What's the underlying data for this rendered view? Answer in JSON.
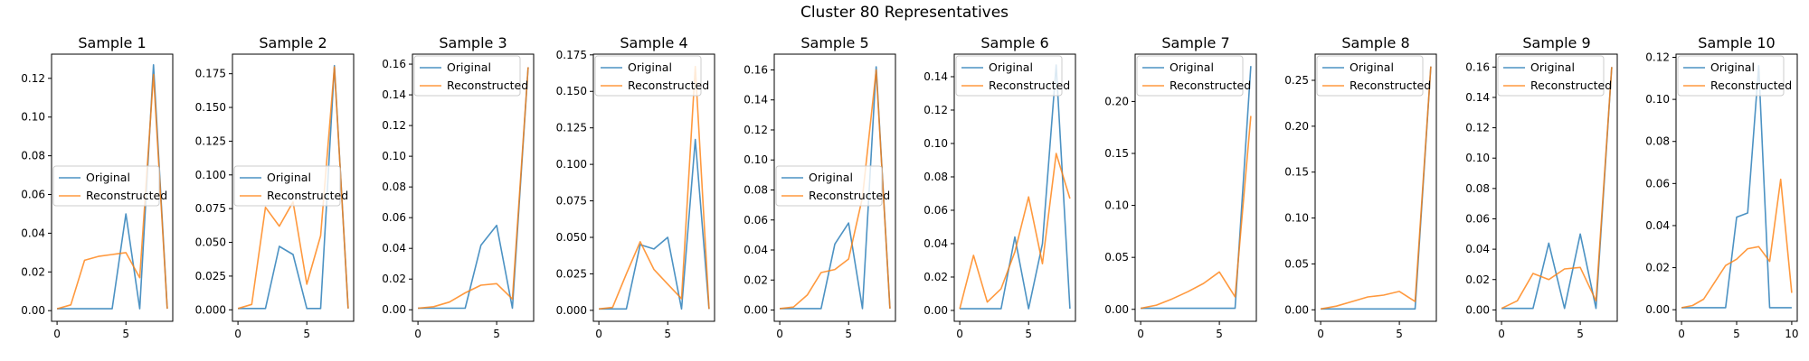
{
  "figure": {
    "suptitle": "Cluster 80 Representatives"
  },
  "colors": {
    "original": "#1f77b4",
    "reconstructed": "#ff7f0e"
  },
  "chart_data": [
    {
      "type": "line",
      "title": "Sample 1",
      "xlim": [
        -0.4,
        8.4
      ],
      "ylim": [
        -0.0055,
        0.1325
      ],
      "xticks": [
        0,
        5
      ],
      "yticks": [
        0.0,
        0.02,
        0.04,
        0.06,
        0.08,
        0.1,
        0.12
      ],
      "ytick_labels": [
        "0.00",
        "0.02",
        "0.04",
        "0.06",
        "0.08",
        "0.10",
        "0.12"
      ],
      "legend_loc": "center-left",
      "series": [
        {
          "name": "Original",
          "x": [
            0,
            1,
            2,
            3,
            4,
            5,
            6,
            7,
            8
          ],
          "y": [
            0.001,
            0.001,
            0.001,
            0.001,
            0.001,
            0.05,
            0.001,
            0.127,
            0.001
          ]
        },
        {
          "name": "Reconstructed",
          "x": [
            0,
            1,
            2,
            3,
            4,
            5,
            6,
            7,
            8
          ],
          "y": [
            0.001,
            0.003,
            0.026,
            0.028,
            0.029,
            0.03,
            0.017,
            0.122,
            0.001
          ]
        }
      ]
    },
    {
      "type": "line",
      "title": "Sample 2",
      "xlim": [
        -0.4,
        8.4
      ],
      "ylim": [
        -0.0085,
        0.1895
      ],
      "xticks": [
        0,
        5
      ],
      "yticks": [
        0.0,
        0.025,
        0.05,
        0.075,
        0.1,
        0.125,
        0.15,
        0.175
      ],
      "ytick_labels": [
        "0.000",
        "0.025",
        "0.050",
        "0.075",
        "0.100",
        "0.125",
        "0.150",
        "0.175"
      ],
      "legend_loc": "center-left",
      "series": [
        {
          "name": "Original",
          "x": [
            0,
            1,
            2,
            3,
            4,
            5,
            6,
            7,
            8
          ],
          "y": [
            0.001,
            0.001,
            0.001,
            0.047,
            0.041,
            0.001,
            0.001,
            0.181,
            0.001
          ]
        },
        {
          "name": "Reconstructed",
          "x": [
            0,
            1,
            2,
            3,
            4,
            5,
            6,
            7,
            8
          ],
          "y": [
            0.001,
            0.004,
            0.076,
            0.062,
            0.08,
            0.019,
            0.055,
            0.18,
            0.001
          ]
        }
      ]
    },
    {
      "type": "line",
      "title": "Sample 3",
      "xlim": [
        -0.35,
        7.35
      ],
      "ylim": [
        -0.0075,
        0.1665
      ],
      "xticks": [
        0,
        5
      ],
      "yticks": [
        0.0,
        0.02,
        0.04,
        0.06,
        0.08,
        0.1,
        0.12,
        0.14,
        0.16
      ],
      "ytick_labels": [
        "0.00",
        "0.02",
        "0.04",
        "0.06",
        "0.08",
        "0.10",
        "0.12",
        "0.14",
        "0.16"
      ],
      "legend_loc": "upper-left",
      "series": [
        {
          "name": "Original",
          "x": [
            0,
            1,
            2,
            3,
            4,
            5,
            6,
            7
          ],
          "y": [
            0.001,
            0.001,
            0.001,
            0.001,
            0.042,
            0.055,
            0.001,
            0.158
          ]
        },
        {
          "name": "Reconstructed",
          "x": [
            0,
            1,
            2,
            3,
            4,
            5,
            6,
            7
          ],
          "y": [
            0.001,
            0.002,
            0.005,
            0.011,
            0.016,
            0.017,
            0.007,
            0.158
          ]
        }
      ]
    },
    {
      "type": "line",
      "title": "Sample 4",
      "xlim": [
        -0.4,
        8.4
      ],
      "ylim": [
        -0.0075,
        0.1755
      ],
      "xticks": [
        0,
        5
      ],
      "yticks": [
        0.0,
        0.025,
        0.05,
        0.075,
        0.1,
        0.125,
        0.15,
        0.175
      ],
      "ytick_labels": [
        "0.000",
        "0.025",
        "0.050",
        "0.075",
        "0.100",
        "0.125",
        "0.150",
        "0.175"
      ],
      "legend_loc": "upper-left",
      "series": [
        {
          "name": "Original",
          "x": [
            0,
            1,
            2,
            3,
            4,
            5,
            6,
            7,
            8
          ],
          "y": [
            0.001,
            0.001,
            0.001,
            0.045,
            0.042,
            0.05,
            0.001,
            0.117,
            0.001
          ]
        },
        {
          "name": "Reconstructed",
          "x": [
            0,
            1,
            2,
            3,
            4,
            5,
            6,
            7,
            8
          ],
          "y": [
            0.001,
            0.002,
            0.025,
            0.047,
            0.028,
            0.018,
            0.008,
            0.167,
            0.001
          ]
        }
      ]
    },
    {
      "type": "line",
      "title": "Sample 5",
      "xlim": [
        -0.4,
        8.4
      ],
      "ylim": [
        -0.0075,
        0.1705
      ],
      "xticks": [
        0,
        5
      ],
      "yticks": [
        0.0,
        0.02,
        0.04,
        0.06,
        0.08,
        0.1,
        0.12,
        0.14,
        0.16
      ],
      "ytick_labels": [
        "0.00",
        "0.02",
        "0.04",
        "0.06",
        "0.08",
        "0.10",
        "0.12",
        "0.14",
        "0.16"
      ],
      "legend_loc": "center-left",
      "series": [
        {
          "name": "Original",
          "x": [
            0,
            1,
            2,
            3,
            4,
            5,
            6,
            7,
            8
          ],
          "y": [
            0.001,
            0.001,
            0.001,
            0.001,
            0.044,
            0.058,
            0.001,
            0.162,
            0.001
          ]
        },
        {
          "name": "Reconstructed",
          "x": [
            0,
            1,
            2,
            3,
            4,
            5,
            6,
            7,
            8
          ],
          "y": [
            0.001,
            0.002,
            0.01,
            0.025,
            0.027,
            0.034,
            0.075,
            0.16,
            0.001
          ]
        }
      ]
    },
    {
      "type": "line",
      "title": "Sample 6",
      "xlim": [
        -0.4,
        8.4
      ],
      "ylim": [
        -0.0065,
        0.1535
      ],
      "xticks": [
        0,
        5
      ],
      "yticks": [
        0.0,
        0.02,
        0.04,
        0.06,
        0.08,
        0.1,
        0.12,
        0.14
      ],
      "ytick_labels": [
        "0.00",
        "0.02",
        "0.04",
        "0.06",
        "0.08",
        "0.10",
        "0.12",
        "0.14"
      ],
      "legend_loc": "upper-left",
      "series": [
        {
          "name": "Original",
          "x": [
            0,
            1,
            2,
            3,
            4,
            5,
            6,
            7,
            8
          ],
          "y": [
            0.001,
            0.001,
            0.001,
            0.001,
            0.044,
            0.001,
            0.04,
            0.147,
            0.001
          ]
        },
        {
          "name": "Reconstructed",
          "x": [
            0,
            1,
            2,
            3,
            4,
            5,
            6,
            7,
            8
          ],
          "y": [
            0.001,
            0.033,
            0.005,
            0.013,
            0.035,
            0.068,
            0.028,
            0.094,
            0.067
          ]
        }
      ]
    },
    {
      "type": "line",
      "title": "Sample 7",
      "xlim": [
        -0.35,
        7.35
      ],
      "ylim": [
        -0.0115,
        0.2455
      ],
      "xticks": [
        0,
        5
      ],
      "yticks": [
        0.0,
        0.05,
        0.1,
        0.15,
        0.2
      ],
      "ytick_labels": [
        "0.00",
        "0.05",
        "0.10",
        "0.15",
        "0.20"
      ],
      "legend_loc": "upper-left",
      "series": [
        {
          "name": "Original",
          "x": [
            0,
            1,
            2,
            3,
            4,
            5,
            6,
            7
          ],
          "y": [
            0.001,
            0.001,
            0.001,
            0.001,
            0.001,
            0.001,
            0.001,
            0.234
          ]
        },
        {
          "name": "Reconstructed",
          "x": [
            0,
            1,
            2,
            3,
            4,
            5,
            6,
            7
          ],
          "y": [
            0.001,
            0.004,
            0.01,
            0.017,
            0.025,
            0.036,
            0.012,
            0.186
          ]
        }
      ]
    },
    {
      "type": "line",
      "title": "Sample 8",
      "xlim": [
        -0.35,
        7.35
      ],
      "ylim": [
        -0.0125,
        0.2785
      ],
      "xticks": [
        0,
        5
      ],
      "yticks": [
        0.0,
        0.05,
        0.1,
        0.15,
        0.2,
        0.25
      ],
      "ytick_labels": [
        "0.00",
        "0.05",
        "0.10",
        "0.15",
        "0.20",
        "0.25"
      ],
      "legend_loc": "upper-left",
      "series": [
        {
          "name": "Original",
          "x": [
            0,
            1,
            2,
            3,
            4,
            5,
            6,
            7
          ],
          "y": [
            0.001,
            0.001,
            0.001,
            0.001,
            0.001,
            0.001,
            0.001,
            0.265
          ]
        },
        {
          "name": "Reconstructed",
          "x": [
            0,
            1,
            2,
            3,
            4,
            5,
            6,
            7
          ],
          "y": [
            0.001,
            0.004,
            0.009,
            0.014,
            0.016,
            0.02,
            0.009,
            0.265
          ]
        }
      ]
    },
    {
      "type": "line",
      "title": "Sample 9",
      "xlim": [
        -0.35,
        7.35
      ],
      "ylim": [
        -0.0075,
        0.1685
      ],
      "xticks": [
        0,
        5
      ],
      "yticks": [
        0.0,
        0.02,
        0.04,
        0.06,
        0.08,
        0.1,
        0.12,
        0.14,
        0.16
      ],
      "ytick_labels": [
        "0.00",
        "0.02",
        "0.04",
        "0.06",
        "0.08",
        "0.10",
        "0.12",
        "0.14",
        "0.16"
      ],
      "legend_loc": "upper-left",
      "series": [
        {
          "name": "Original",
          "x": [
            0,
            1,
            2,
            3,
            4,
            5,
            6,
            7
          ],
          "y": [
            0.001,
            0.001,
            0.001,
            0.044,
            0.001,
            0.05,
            0.001,
            0.16
          ]
        },
        {
          "name": "Reconstructed",
          "x": [
            0,
            1,
            2,
            3,
            4,
            5,
            6,
            7
          ],
          "y": [
            0.001,
            0.006,
            0.024,
            0.02,
            0.027,
            0.028,
            0.006,
            0.16
          ]
        }
      ]
    },
    {
      "type": "line",
      "title": "Sample 10",
      "xlim": [
        -0.5,
        10.5
      ],
      "ylim": [
        -0.0055,
        0.1215
      ],
      "xticks": [
        0,
        5,
        10
      ],
      "yticks": [
        0.0,
        0.02,
        0.04,
        0.06,
        0.08,
        0.1,
        0.12
      ],
      "ytick_labels": [
        "0.00",
        "0.02",
        "0.04",
        "0.06",
        "0.08",
        "0.10",
        "0.12"
      ],
      "legend_loc": "upper-left",
      "series": [
        {
          "name": "Original",
          "x": [
            0,
            1,
            2,
            3,
            4,
            5,
            6,
            7,
            8,
            9,
            10
          ],
          "y": [
            0.001,
            0.001,
            0.001,
            0.001,
            0.001,
            0.044,
            0.046,
            0.116,
            0.001,
            0.001,
            0.001
          ]
        },
        {
          "name": "Reconstructed",
          "x": [
            0,
            1,
            2,
            3,
            4,
            5,
            6,
            7,
            8,
            9,
            10
          ],
          "y": [
            0.001,
            0.002,
            0.005,
            0.013,
            0.021,
            0.024,
            0.029,
            0.03,
            0.023,
            0.062,
            0.008
          ]
        }
      ]
    }
  ]
}
